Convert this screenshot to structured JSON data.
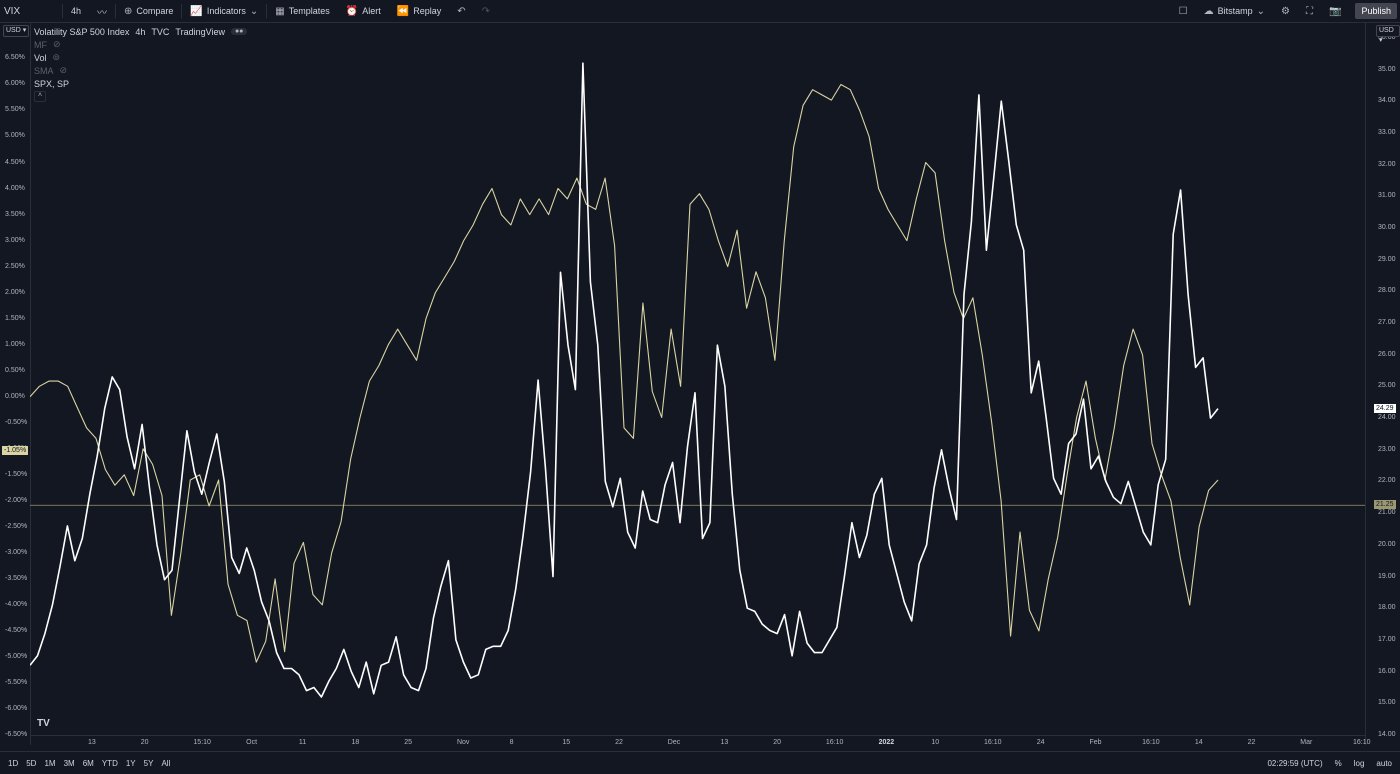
{
  "toolbar": {
    "symbol": "VIX",
    "interval": "4h",
    "compare": "Compare",
    "indicators": "Indicators",
    "templates": "Templates",
    "alert": "Alert",
    "replay": "Replay",
    "exchange": "Bitstamp",
    "publish": "Publish"
  },
  "legend": {
    "main": "Volatility S&P 500 Index",
    "interval": "4h",
    "source": "TVC",
    "provider": "TradingView",
    "row1": "MF",
    "row2": "Vol",
    "row3": "SMA",
    "row4": "SPX, SP"
  },
  "left_currency": "USD",
  "right_currency": "USD",
  "left_axis_ticks": [
    "7.00%",
    "6.50%",
    "6.00%",
    "5.50%",
    "5.00%",
    "4.50%",
    "4.00%",
    "3.50%",
    "3.00%",
    "2.50%",
    "2.00%",
    "1.50%",
    "1.00%",
    "0.50%",
    "0.00%",
    "-0.50%",
    "-1.00%",
    "-1.50%",
    "-2.00%",
    "-2.50%",
    "-3.00%",
    "-3.50%",
    "-4.00%",
    "-4.50%",
    "-5.00%",
    "-5.50%",
    "-6.00%",
    "-6.50%"
  ],
  "right_axis_ticks": [
    "36.00",
    "35.00",
    "34.00",
    "33.00",
    "32.00",
    "31.00",
    "30.00",
    "29.00",
    "28.00",
    "27.00",
    "26.00",
    "25.00",
    "24.00",
    "23.00",
    "22.00",
    "21.00",
    "20.00",
    "19.00",
    "18.00",
    "17.00",
    "16.00",
    "15.00",
    "14.00"
  ],
  "left_price_label": "-1.05%",
  "right_price_label": "24.29",
  "crosshair_price_label": "21.25",
  "time_axis": [
    "13",
    "20",
    "15:10",
    "Oct",
    "11",
    "18",
    "25",
    "Nov",
    "8",
    "15",
    "22",
    "Dec",
    "13",
    "20",
    "16:10",
    "2022",
    "10",
    "16:10",
    "24",
    "Feb",
    "16:10",
    "14",
    "22",
    "Mar",
    "16:10"
  ],
  "ranges": [
    "1D",
    "5D",
    "1M",
    "3M",
    "6M",
    "YTD",
    "1Y",
    "5Y",
    "All"
  ],
  "clock": "02:29:59 (UTC)",
  "percent": "%",
  "log": "log",
  "auto": "auto",
  "colors": {
    "background": "#131722",
    "vix_line": "#ffffff",
    "spx_line": "#d9d4a2",
    "crosshair": "#9b9770"
  },
  "chart_data": {
    "type": "line",
    "title": "Volatility S&P 500 Index",
    "interval": "4h",
    "x_labels": [
      "13",
      "20",
      "15:10",
      "Oct",
      "11",
      "18",
      "25",
      "Nov",
      "8",
      "15",
      "22",
      "Dec",
      "13",
      "20",
      "16:10",
      "2022",
      "10",
      "16:10",
      "24",
      "Feb",
      "16:10",
      "14",
      "22",
      "Mar",
      "16:10"
    ],
    "right_axis_range": [
      14,
      36.5
    ],
    "left_axis_range": [
      -6.5,
      7.2
    ],
    "series": [
      {
        "name": "VIX",
        "axis": "right",
        "values": [
          16.2,
          16.5,
          17.2,
          18.1,
          19.3,
          20.6,
          19.5,
          20.2,
          21.6,
          22.8,
          24.3,
          25.3,
          24.9,
          23.4,
          22.4,
          23.8,
          21.8,
          20.0,
          18.9,
          19.2,
          21.4,
          23.6,
          22.3,
          21.6,
          22.6,
          23.5,
          22.0,
          19.6,
          19.1,
          19.9,
          19.2,
          18.2,
          17.6,
          16.6,
          16.1,
          16.1,
          15.9,
          15.4,
          15.5,
          15.2,
          15.7,
          16.1,
          16.7,
          16.0,
          15.5,
          16.3,
          15.3,
          16.2,
          16.3,
          17.1,
          15.9,
          15.5,
          15.4,
          16.1,
          17.7,
          18.7,
          19.5,
          17.0,
          16.3,
          15.8,
          15.9,
          16.7,
          16.8,
          16.8,
          17.3,
          18.6,
          20.3,
          22.3,
          25.2,
          22.4,
          19.0,
          28.6,
          26.3,
          24.9,
          35.2,
          28.3,
          26.3,
          22.0,
          21.2,
          22.1,
          20.4,
          19.9,
          21.7,
          20.8,
          20.7,
          21.9,
          22.6,
          20.7,
          23.1,
          24.8,
          20.2,
          20.7,
          26.3,
          25.0,
          21.6,
          19.2,
          18.0,
          17.9,
          17.5,
          17.3,
          17.2,
          17.8,
          16.5,
          17.9,
          16.9,
          16.6,
          16.6,
          17.0,
          17.4,
          19.0,
          20.7,
          19.6,
          20.3,
          21.6,
          22.1,
          20.0,
          19.1,
          18.2,
          17.6,
          19.4,
          20.0,
          21.8,
          23.0,
          21.8,
          20.8,
          27.9,
          30.2,
          34.2,
          29.3,
          31.6,
          34.0,
          32.1,
          30.1,
          29.3,
          24.8,
          25.8,
          24.0,
          22.1,
          21.6,
          23.2,
          23.5,
          24.6,
          22.4,
          22.8,
          22.0,
          21.5,
          21.3,
          22.0,
          21.2,
          20.4,
          20.0,
          21.9,
          22.7,
          29.8,
          31.2,
          27.9,
          25.6,
          25.9,
          24.0,
          24.3
        ]
      },
      {
        "name": "SPX, SP",
        "axis": "left",
        "values": [
          0.0,
          0.2,
          0.3,
          0.3,
          0.2,
          -0.2,
          -0.6,
          -0.8,
          -1.4,
          -1.7,
          -1.5,
          -1.9,
          -1.0,
          -1.3,
          -1.9,
          -4.2,
          -3.0,
          -1.6,
          -1.5,
          -2.1,
          -1.6,
          -3.6,
          -4.2,
          -4.3,
          -5.1,
          -4.7,
          -3.5,
          -4.9,
          -3.2,
          -2.8,
          -3.8,
          -4.0,
          -3.0,
          -2.4,
          -1.2,
          -0.4,
          0.3,
          0.6,
          1.0,
          1.3,
          1.0,
          0.7,
          1.5,
          2.0,
          2.3,
          2.6,
          3.0,
          3.3,
          3.7,
          4.0,
          3.5,
          3.3,
          3.8,
          3.5,
          3.8,
          3.5,
          4.0,
          3.8,
          4.2,
          3.7,
          3.6,
          4.2,
          2.9,
          -0.6,
          -0.8,
          1.8,
          0.1,
          -0.4,
          1.3,
          0.2,
          3.7,
          3.9,
          3.6,
          3.0,
          2.5,
          3.2,
          1.7,
          2.4,
          1.9,
          0.7,
          3.0,
          4.8,
          5.6,
          5.9,
          5.8,
          5.7,
          6.0,
          5.9,
          5.5,
          5.0,
          4.0,
          3.6,
          3.3,
          3.0,
          3.8,
          4.5,
          4.3,
          3.0,
          2.0,
          1.5,
          1.9,
          0.8,
          -0.5,
          -2.0,
          -4.6,
          -2.6,
          -4.1,
          -4.5,
          -3.5,
          -2.7,
          -1.5,
          -0.4,
          0.3,
          -0.8,
          -1.6,
          -0.6,
          0.6,
          1.3,
          0.8,
          -0.9,
          -1.5,
          -2.0,
          -3.1,
          -4.0,
          -2.5,
          -1.8,
          -1.6
        ]
      }
    ]
  }
}
